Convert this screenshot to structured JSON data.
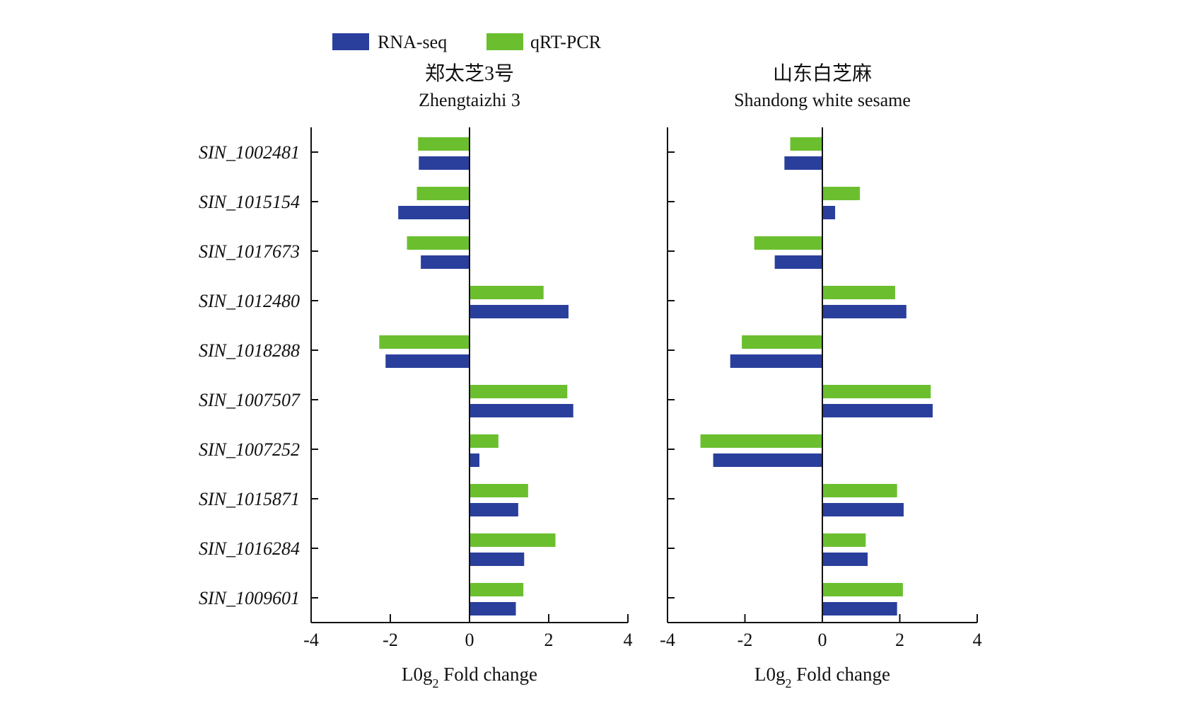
{
  "chart_data": {
    "type": "bar",
    "orientation": "horizontal",
    "legend": {
      "position": "top",
      "items": [
        {
          "name": "RNA-seq",
          "color": "#2a3f9c"
        },
        {
          "name": "qRT-PCR",
          "color": "#6bbf2f"
        }
      ]
    },
    "categories": [
      "SIN_1002481",
      "SIN_1015154",
      "SIN_1017673",
      "SIN_1012480",
      "SIN_1018288",
      "SIN_1007507",
      "SIN_1007252",
      "SIN_1015871",
      "SIN_1016284",
      "SIN_1009601"
    ],
    "xlim": [
      -4,
      4
    ],
    "xticks": [
      "-4",
      "-2",
      "0",
      "2",
      "4"
    ],
    "xlabel": "L0g",
    "xlabel_sub": "2",
    "xlabel_rest": " Fold change",
    "panels": [
      {
        "title_cn": "郑太芝3号",
        "title_en": "Zhengtaizhi 3",
        "series": [
          {
            "name": "qRT-PCR",
            "values": [
              -1.3,
              -1.33,
              -1.58,
              1.87,
              -2.28,
              2.47,
              0.73,
              1.48,
              2.17,
              1.36
            ]
          },
          {
            "name": "RNA-seq",
            "values": [
              -1.28,
              -1.8,
              -1.23,
              2.5,
              -2.12,
              2.62,
              0.25,
              1.23,
              1.38,
              1.17
            ]
          }
        ]
      },
      {
        "title_cn": "山东白芝麻",
        "title_en": "Shandong white sesame",
        "series": [
          {
            "name": "qRT-PCR",
            "values": [
              -0.83,
              0.97,
              -1.76,
              1.88,
              -2.08,
              2.8,
              -3.15,
              1.93,
              1.12,
              2.08
            ]
          },
          {
            "name": "RNA-seq",
            "values": [
              -0.98,
              0.33,
              -1.23,
              2.17,
              -2.38,
              2.85,
              -2.82,
              2.1,
              1.17,
              1.93
            ]
          }
        ]
      }
    ]
  }
}
